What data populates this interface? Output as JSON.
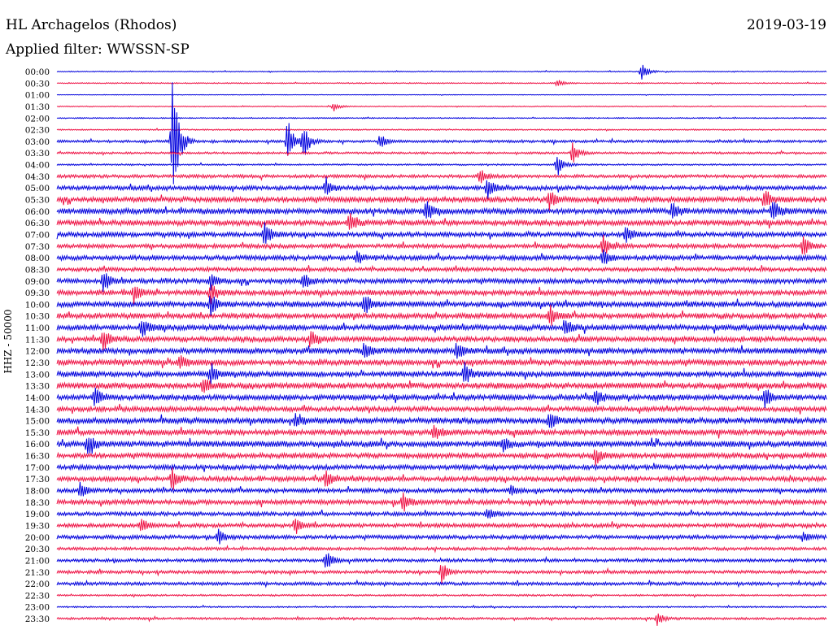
{
  "header": {
    "station": "HL Archagelos (Rhodos)",
    "filter": "Applied filter: WWSSN-SP",
    "date": "2019-03-19"
  },
  "axis": {
    "ylabel": "HHZ - 50000"
  },
  "colors": {
    "trace_a": "#0000dd",
    "trace_b": "#ee1144",
    "text": "#000000",
    "background": "#ffffff"
  },
  "chart_data": {
    "type": "line",
    "title": "HL Archagelos (Rhodos)",
    "subtitle": "Applied filter: WWSSN-SP",
    "ylabel": "HHZ - 50000",
    "xlabel": "",
    "rows": [
      "00:00",
      "00:30",
      "01:00",
      "01:30",
      "02:00",
      "02:30",
      "03:00",
      "03:30",
      "04:00",
      "04:30",
      "05:00",
      "05:30",
      "06:00",
      "06:30",
      "07:00",
      "07:30",
      "08:00",
      "08:30",
      "09:00",
      "09:30",
      "10:00",
      "10:30",
      "11:00",
      "11:30",
      "12:00",
      "12:30",
      "13:00",
      "13:30",
      "14:00",
      "14:30",
      "15:00",
      "15:30",
      "16:00",
      "16:30",
      "17:00",
      "17:30",
      "18:00",
      "18:30",
      "19:00",
      "19:30",
      "20:00",
      "20:30",
      "21:00",
      "21:30",
      "22:00",
      "22:30",
      "23:00",
      "23:30"
    ],
    "noise_level": [
      0.6,
      0.7,
      0.4,
      0.6,
      0.7,
      0.8,
      1.6,
      1.3,
      1.0,
      2.0,
      2.6,
      3.2,
      3.4,
      3.2,
      2.9,
      2.6,
      2.9,
      2.4,
      2.9,
      3.2,
      3.4,
      3.2,
      3.4,
      3.2,
      3.4,
      3.4,
      3.4,
      3.6,
      3.2,
      3.0,
      3.6,
      3.4,
      3.6,
      3.1,
      2.9,
      2.9,
      2.6,
      2.9,
      2.4,
      2.4,
      2.4,
      1.9,
      2.0,
      1.9,
      2.0,
      1.1,
      0.9,
      1.4
    ],
    "events": [
      {
        "row": 0,
        "t": 0.76,
        "amp": 12
      },
      {
        "row": 1,
        "t": 0.65,
        "amp": 5
      },
      {
        "row": 3,
        "t": 0.36,
        "amp": 6
      },
      {
        "row": 6,
        "t": 0.15,
        "amp": 95
      },
      {
        "row": 6,
        "t": 0.3,
        "amp": 30
      },
      {
        "row": 6,
        "t": 0.32,
        "amp": 22
      },
      {
        "row": 6,
        "t": 0.42,
        "amp": 10
      },
      {
        "row": 7,
        "t": 0.67,
        "amp": 14
      },
      {
        "row": 8,
        "t": 0.65,
        "amp": 16
      },
      {
        "row": 9,
        "t": 0.55,
        "amp": 10
      },
      {
        "row": 10,
        "t": 0.35,
        "amp": 12
      },
      {
        "row": 10,
        "t": 0.56,
        "amp": 14
      },
      {
        "row": 11,
        "t": 0.64,
        "amp": 12
      },
      {
        "row": 11,
        "t": 0.92,
        "amp": 14
      },
      {
        "row": 12,
        "t": 0.48,
        "amp": 14
      },
      {
        "row": 12,
        "t": 0.8,
        "amp": 12
      },
      {
        "row": 12,
        "t": 0.93,
        "amp": 16
      },
      {
        "row": 13,
        "t": 0.38,
        "amp": 12
      },
      {
        "row": 14,
        "t": 0.27,
        "amp": 14
      },
      {
        "row": 14,
        "t": 0.74,
        "amp": 12
      },
      {
        "row": 15,
        "t": 0.71,
        "amp": 14
      },
      {
        "row": 15,
        "t": 0.97,
        "amp": 14
      },
      {
        "row": 16,
        "t": 0.39,
        "amp": 10
      },
      {
        "row": 16,
        "t": 0.71,
        "amp": 14
      },
      {
        "row": 18,
        "t": 0.06,
        "amp": 16
      },
      {
        "row": 18,
        "t": 0.2,
        "amp": 12
      },
      {
        "row": 18,
        "t": 0.32,
        "amp": 10
      },
      {
        "row": 19,
        "t": 0.1,
        "amp": 14
      },
      {
        "row": 19,
        "t": 0.2,
        "amp": 12
      },
      {
        "row": 20,
        "t": 0.2,
        "amp": 14
      },
      {
        "row": 20,
        "t": 0.4,
        "amp": 14
      },
      {
        "row": 21,
        "t": 0.64,
        "amp": 14
      },
      {
        "row": 22,
        "t": 0.11,
        "amp": 14
      },
      {
        "row": 22,
        "t": 0.66,
        "amp": 14
      },
      {
        "row": 23,
        "t": 0.06,
        "amp": 14
      },
      {
        "row": 23,
        "t": 0.33,
        "amp": 12
      },
      {
        "row": 24,
        "t": 0.4,
        "amp": 12
      },
      {
        "row": 24,
        "t": 0.52,
        "amp": 12
      },
      {
        "row": 25,
        "t": 0.16,
        "amp": 12
      },
      {
        "row": 26,
        "t": 0.2,
        "amp": 14
      },
      {
        "row": 26,
        "t": 0.53,
        "amp": 14
      },
      {
        "row": 27,
        "t": 0.19,
        "amp": 12
      },
      {
        "row": 28,
        "t": 0.05,
        "amp": 14
      },
      {
        "row": 28,
        "t": 0.7,
        "amp": 12
      },
      {
        "row": 28,
        "t": 0.92,
        "amp": 12
      },
      {
        "row": 30,
        "t": 0.31,
        "amp": 12
      },
      {
        "row": 30,
        "t": 0.64,
        "amp": 12
      },
      {
        "row": 31,
        "t": 0.49,
        "amp": 10
      },
      {
        "row": 32,
        "t": 0.04,
        "amp": 14
      },
      {
        "row": 32,
        "t": 0.58,
        "amp": 10
      },
      {
        "row": 33,
        "t": 0.7,
        "amp": 12
      },
      {
        "row": 35,
        "t": 0.15,
        "amp": 16
      },
      {
        "row": 35,
        "t": 0.35,
        "amp": 12
      },
      {
        "row": 36,
        "t": 0.03,
        "amp": 10
      },
      {
        "row": 36,
        "t": 0.59,
        "amp": 8
      },
      {
        "row": 37,
        "t": 0.45,
        "amp": 12
      },
      {
        "row": 38,
        "t": 0.56,
        "amp": 10
      },
      {
        "row": 39,
        "t": 0.11,
        "amp": 10
      },
      {
        "row": 39,
        "t": 0.31,
        "amp": 10
      },
      {
        "row": 40,
        "t": 0.21,
        "amp": 10
      },
      {
        "row": 40,
        "t": 0.97,
        "amp": 8
      },
      {
        "row": 42,
        "t": 0.35,
        "amp": 12
      },
      {
        "row": 43,
        "t": 0.5,
        "amp": 14
      },
      {
        "row": 47,
        "t": 0.78,
        "amp": 10
      }
    ]
  }
}
